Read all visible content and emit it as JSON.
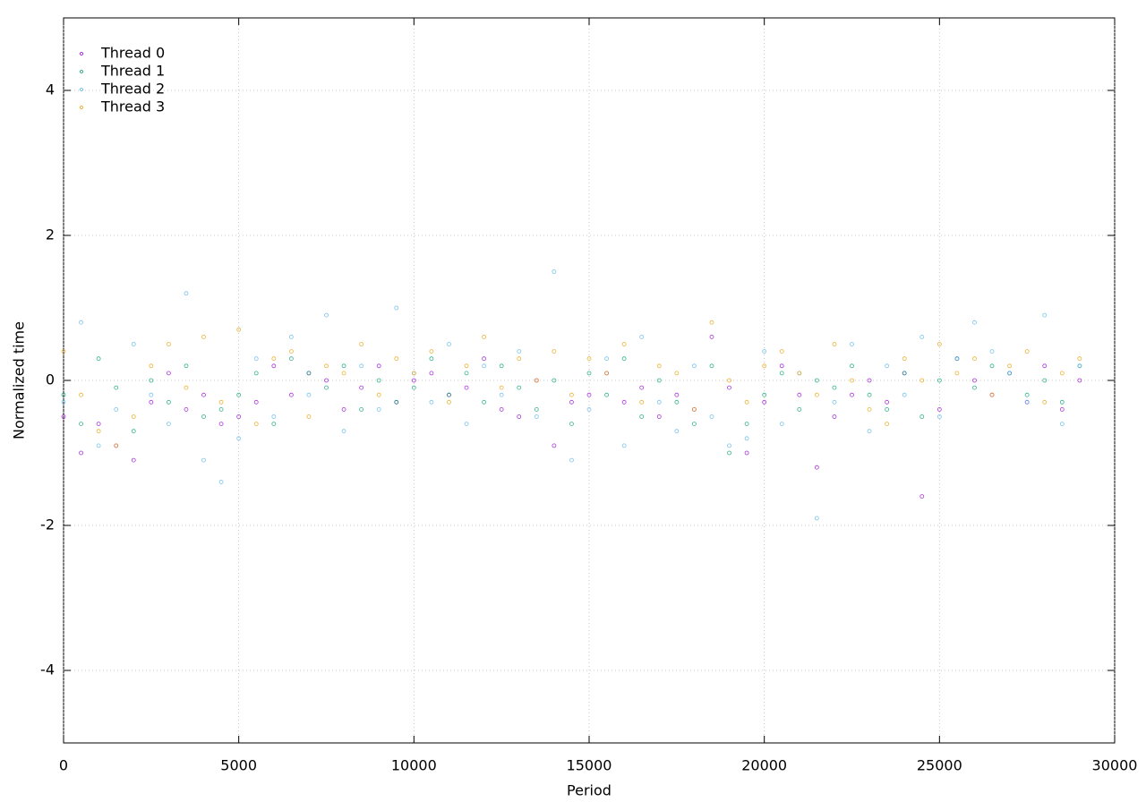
{
  "chart_data": {
    "type": "scatter",
    "xlabel": "Period",
    "ylabel": "Normalized time",
    "xlim": [
      0,
      30000
    ],
    "ylim": [
      -5,
      5
    ],
    "xticks": [
      0,
      5000,
      10000,
      15000,
      20000,
      25000,
      30000
    ],
    "yticks": [
      -4,
      -2,
      0,
      2,
      4
    ],
    "grid": true,
    "legend": "top-left",
    "x": [
      0,
      500,
      1000,
      1500,
      2000,
      2500,
      3000,
      3500,
      4000,
      4500,
      5000,
      5500,
      6000,
      6500,
      7000,
      7500,
      8000,
      8500,
      9000,
      9500,
      10000,
      10500,
      11000,
      11500,
      12000,
      12500,
      13000,
      13500,
      14000,
      14500,
      15000,
      15500,
      16000,
      16500,
      17000,
      17500,
      18000,
      18500,
      19000,
      19500,
      20000,
      20500,
      21000,
      21500,
      22000,
      22500,
      23000,
      23500,
      24000,
      24500,
      25000,
      25500,
      26000,
      26500,
      27000,
      27500,
      28000,
      28500,
      29000
    ],
    "series": [
      {
        "name": "Thread 0",
        "color": "#9400d3",
        "values": [
          -0.5,
          -1.0,
          -0.6,
          -0.9,
          -1.1,
          -0.3,
          0.1,
          -0.4,
          -0.2,
          -0.6,
          -0.5,
          -0.3,
          0.2,
          -0.2,
          0.1,
          0.0,
          -0.4,
          -0.1,
          0.2,
          -0.3,
          0.0,
          0.1,
          -0.2,
          -0.1,
          0.3,
          -0.4,
          -0.5,
          0.0,
          -0.9,
          -0.3,
          -0.2,
          0.1,
          -0.3,
          -0.1,
          -0.5,
          -0.2,
          -0.4,
          0.6,
          -0.1,
          -1.0,
          -0.3,
          0.2,
          -0.2,
          -1.2,
          -0.5,
          -0.2,
          0.0,
          -0.3,
          0.1,
          -1.6,
          -0.4,
          0.3,
          0.0,
          -0.2,
          0.1,
          -0.3,
          0.2,
          -0.4,
          0.0
        ]
      },
      {
        "name": "Thread 1",
        "color": "#009e73",
        "values": [
          -0.2,
          -0.6,
          0.3,
          -0.1,
          -0.7,
          0.0,
          -0.3,
          0.2,
          -0.5,
          -0.4,
          -0.2,
          0.1,
          -0.6,
          0.3,
          0.1,
          -0.1,
          0.2,
          -0.4,
          0.0,
          -0.3,
          -0.1,
          0.3,
          -0.2,
          0.1,
          -0.3,
          0.2,
          -0.1,
          -0.4,
          0.0,
          -0.6,
          0.1,
          -0.2,
          0.3,
          -0.5,
          0.0,
          -0.3,
          -0.6,
          0.2,
          -1.0,
          -0.6,
          -0.2,
          0.1,
          -0.4,
          0.0,
          -0.1,
          0.2,
          -0.2,
          -0.4,
          0.1,
          -0.5,
          0.0,
          0.3,
          -0.1,
          0.2,
          0.1,
          -0.2,
          0.0,
          -0.3,
          0.2
        ]
      },
      {
        "name": "Thread 2",
        "color": "#56b4e9",
        "values": [
          -0.3,
          0.8,
          -0.9,
          -0.4,
          0.5,
          -0.2,
          -0.6,
          1.2,
          -1.1,
          -1.4,
          -0.8,
          0.3,
          -0.5,
          0.6,
          -0.2,
          0.9,
          -0.7,
          0.2,
          -0.4,
          1.0,
          0.1,
          -0.3,
          0.5,
          -0.6,
          0.2,
          -0.2,
          0.4,
          -0.5,
          1.5,
          -1.1,
          -0.4,
          0.3,
          -0.9,
          0.6,
          -0.3,
          -0.7,
          0.2,
          -0.5,
          -0.9,
          -0.8,
          0.4,
          -0.6,
          0.1,
          -1.9,
          -0.3,
          0.5,
          -0.7,
          0.2,
          -0.2,
          0.6,
          -0.5,
          0.3,
          0.8,
          0.4,
          0.1,
          -0.3,
          0.9,
          -0.6,
          0.2
        ]
      },
      {
        "name": "Thread 3",
        "color": "#e69f00",
        "values": [
          0.4,
          -0.2,
          -0.7,
          -0.9,
          -0.5,
          0.2,
          0.5,
          -0.1,
          0.6,
          -0.3,
          0.7,
          -0.6,
          0.3,
          0.4,
          -0.5,
          0.2,
          0.1,
          0.5,
          -0.2,
          0.3,
          0.1,
          0.4,
          -0.3,
          0.2,
          0.6,
          -0.1,
          0.3,
          0.0,
          0.4,
          -0.2,
          0.3,
          0.1,
          0.5,
          -0.3,
          0.2,
          0.1,
          -0.4,
          0.8,
          0.0,
          -0.3,
          0.2,
          0.4,
          0.1,
          -0.2,
          0.5,
          0.0,
          -0.4,
          -0.6,
          0.3,
          0.0,
          0.5,
          0.1,
          0.3,
          -0.2,
          0.2,
          0.4,
          -0.3,
          0.1,
          0.3
        ]
      }
    ]
  }
}
